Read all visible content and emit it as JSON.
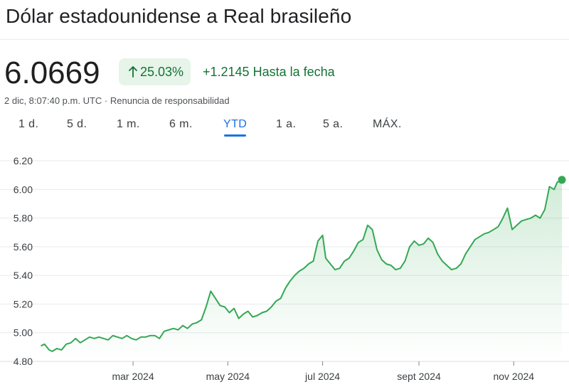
{
  "header": {
    "title": "Dólar estadounidense a Real brasileño"
  },
  "quote": {
    "price": "6.0669",
    "percent_change": "25.03%",
    "absolute_change": "+1.2145",
    "period_label": "Hasta la fecha",
    "timestamp": "2 dic, 8:07:40 p.m. UTC",
    "separator": "·",
    "disclaimer": "Renuncia de responsabilidad"
  },
  "tabs": [
    {
      "label": "1 d.",
      "active": false
    },
    {
      "label": "5 d.",
      "active": false
    },
    {
      "label": "1 m.",
      "active": false
    },
    {
      "label": "6 m.",
      "active": false
    },
    {
      "label": "YTD",
      "active": true
    },
    {
      "label": "1 a.",
      "active": false
    },
    {
      "label": "5 a.",
      "active": false
    },
    {
      "label": "MÁX.",
      "active": false
    }
  ],
  "colors": {
    "positive": "#137333",
    "line": "#34a853",
    "badge_bg": "#e6f4ea",
    "active_tab": "#1a73e8",
    "grid": "#e8eaed"
  },
  "icons": {
    "trend": "arrow-up-icon"
  },
  "chart_data": {
    "type": "line",
    "title": "",
    "xlabel": "",
    "ylabel": "",
    "ylim": [
      4.8,
      6.2
    ],
    "y_ticks": [
      "6.20",
      "6.00",
      "5.80",
      "5.60",
      "5.40",
      "5.20",
      "5.00",
      "4.80"
    ],
    "y_tick_values": [
      6.2,
      6.0,
      5.8,
      5.6,
      5.4,
      5.2,
      5.0,
      4.8
    ],
    "x_domain": [
      "2024-01-01",
      "2024-12-02"
    ],
    "x_ticks": [
      {
        "label": "mar 2024",
        "date": "2024-03-01"
      },
      {
        "label": "may 2024",
        "date": "2024-05-01"
      },
      {
        "label": "jul 2024",
        "date": "2024-07-01"
      },
      {
        "label": "sept 2024",
        "date": "2024-09-01"
      },
      {
        "label": "nov 2024",
        "date": "2024-11-01"
      }
    ],
    "grid": true,
    "series": [
      {
        "x": [
          "2024-01-02",
          "2024-01-04",
          "2024-01-07",
          "2024-01-09",
          "2024-01-12",
          "2024-01-15",
          "2024-01-18",
          "2024-01-21",
          "2024-01-24",
          "2024-01-27",
          "2024-01-30",
          "2024-02-02",
          "2024-02-05",
          "2024-02-08",
          "2024-02-11",
          "2024-02-14",
          "2024-02-17",
          "2024-02-20",
          "2024-02-23",
          "2024-02-26",
          "2024-02-29",
          "2024-03-03",
          "2024-03-06",
          "2024-03-09",
          "2024-03-12",
          "2024-03-15",
          "2024-03-18",
          "2024-03-21",
          "2024-03-24",
          "2024-03-27",
          "2024-03-30",
          "2024-04-02",
          "2024-04-05",
          "2024-04-08",
          "2024-04-11",
          "2024-04-14",
          "2024-04-17",
          "2024-04-20",
          "2024-04-23",
          "2024-04-26",
          "2024-04-29",
          "2024-05-02",
          "2024-05-05",
          "2024-05-08",
          "2024-05-11",
          "2024-05-14",
          "2024-05-17",
          "2024-05-20",
          "2024-05-23",
          "2024-05-26",
          "2024-05-29",
          "2024-06-01",
          "2024-06-04",
          "2024-06-07",
          "2024-06-10",
          "2024-06-13",
          "2024-06-16",
          "2024-06-19",
          "2024-06-22",
          "2024-06-25",
          "2024-06-28",
          "2024-07-01",
          "2024-07-03",
          "2024-07-06",
          "2024-07-09",
          "2024-07-12",
          "2024-07-15",
          "2024-07-18",
          "2024-07-21",
          "2024-07-24",
          "2024-07-27",
          "2024-07-30",
          "2024-08-02",
          "2024-08-05",
          "2024-08-08",
          "2024-08-11",
          "2024-08-14",
          "2024-08-17",
          "2024-08-20",
          "2024-08-23",
          "2024-08-26",
          "2024-08-29",
          "2024-09-01",
          "2024-09-04",
          "2024-09-07",
          "2024-09-10",
          "2024-09-13",
          "2024-09-16",
          "2024-09-19",
          "2024-09-22",
          "2024-09-25",
          "2024-09-28",
          "2024-10-01",
          "2024-10-04",
          "2024-10-07",
          "2024-10-10",
          "2024-10-13",
          "2024-10-16",
          "2024-10-19",
          "2024-10-22",
          "2024-10-25",
          "2024-10-28",
          "2024-10-31",
          "2024-11-03",
          "2024-11-06",
          "2024-11-09",
          "2024-11-12",
          "2024-11-15",
          "2024-11-18",
          "2024-11-21",
          "2024-11-24",
          "2024-11-27",
          "2024-11-29",
          "2024-12-02"
        ],
        "y": [
          4.91,
          4.92,
          4.88,
          4.87,
          4.89,
          4.88,
          4.92,
          4.93,
          4.96,
          4.93,
          4.95,
          4.97,
          4.96,
          4.97,
          4.96,
          4.95,
          4.98,
          4.97,
          4.96,
          4.98,
          4.96,
          4.95,
          4.97,
          4.97,
          4.98,
          4.98,
          4.96,
          5.01,
          5.02,
          5.03,
          5.02,
          5.05,
          5.03,
          5.06,
          5.07,
          5.09,
          5.18,
          5.29,
          5.24,
          5.19,
          5.18,
          5.14,
          5.17,
          5.1,
          5.13,
          5.15,
          5.11,
          5.12,
          5.14,
          5.15,
          5.18,
          5.22,
          5.24,
          5.31,
          5.36,
          5.4,
          5.43,
          5.45,
          5.48,
          5.5,
          5.64,
          5.68,
          5.52,
          5.48,
          5.44,
          5.45,
          5.5,
          5.52,
          5.57,
          5.63,
          5.65,
          5.75,
          5.72,
          5.58,
          5.51,
          5.48,
          5.47,
          5.44,
          5.45,
          5.5,
          5.6,
          5.64,
          5.61,
          5.62,
          5.66,
          5.63,
          5.55,
          5.5,
          5.47,
          5.44,
          5.45,
          5.48,
          5.55,
          5.6,
          5.65,
          5.67,
          5.69,
          5.7,
          5.72,
          5.74,
          5.8,
          5.87,
          5.72,
          5.75,
          5.78,
          5.79,
          5.8,
          5.82,
          5.8,
          5.86,
          6.02,
          6.0,
          6.05,
          6.0669
        ]
      }
    ]
  }
}
